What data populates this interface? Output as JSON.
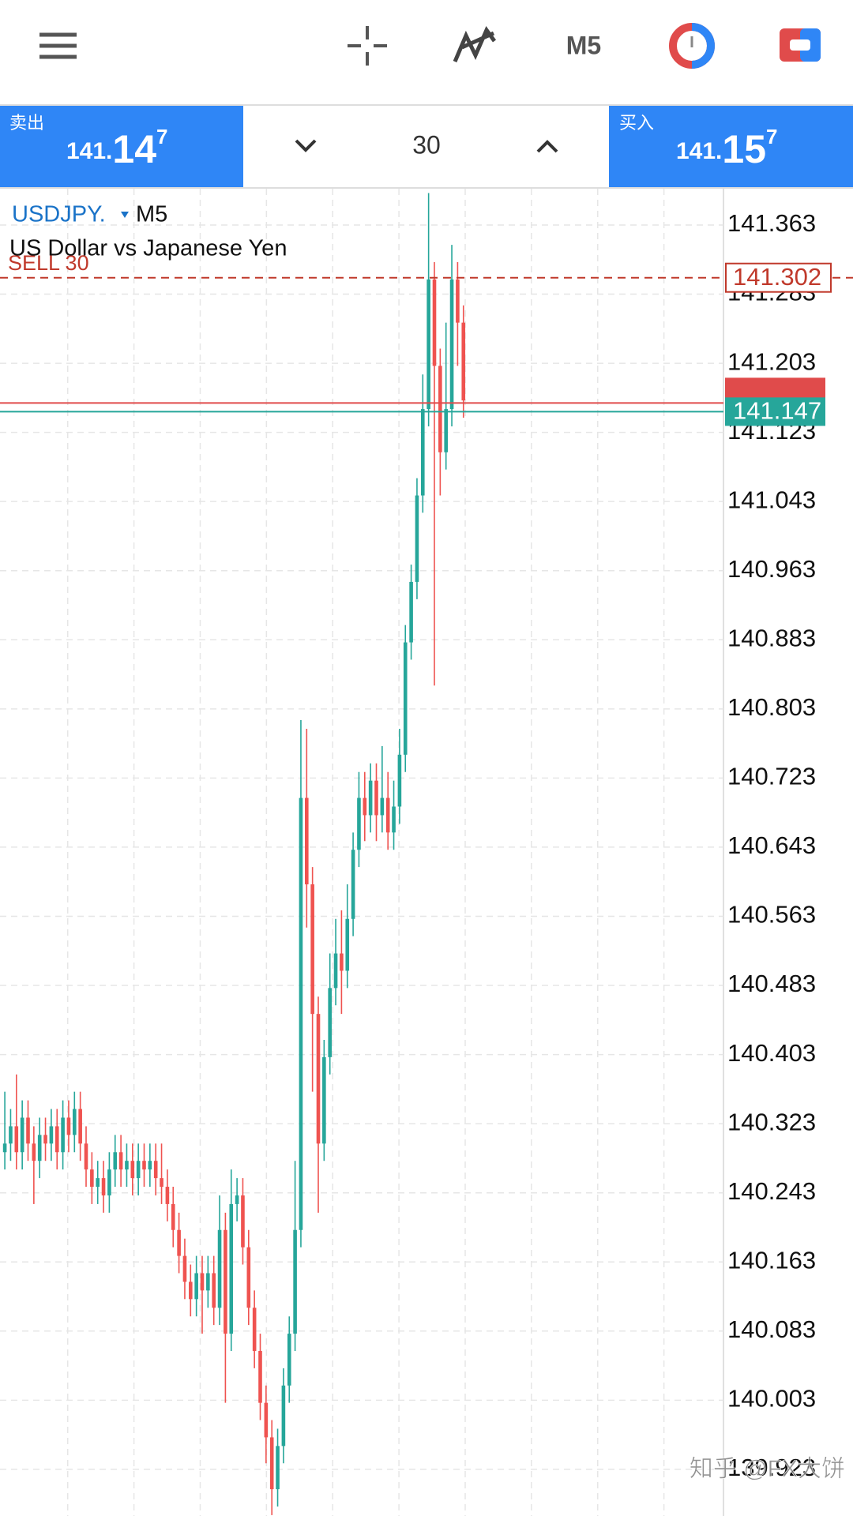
{
  "toolbar": {
    "timeframe": "M5"
  },
  "trade_panel": {
    "sell": {
      "label": "卖出",
      "price_prefix": "141.",
      "price_big": "14",
      "price_super": "7"
    },
    "volume": "30",
    "buy": {
      "label": "买入",
      "price_prefix": "141.",
      "price_big": "15",
      "price_super": "7"
    }
  },
  "chart_data": {
    "type": "candlestick",
    "symbol": "USDJPY.",
    "timeframe": "M5",
    "description": "US Dollar vs Japanese Yen",
    "up_color": "#26a69a",
    "down_color": "#ef5350",
    "grid": true,
    "ylim": [
      139.869,
      141.405
    ],
    "yticks": [
      141.363,
      141.283,
      141.203,
      141.123,
      141.043,
      140.963,
      140.883,
      140.803,
      140.723,
      140.643,
      140.563,
      140.483,
      140.403,
      140.323,
      140.243,
      140.163,
      140.083,
      140.003,
      139.923
    ],
    "open": [
      140.29,
      140.3,
      140.32,
      140.29,
      140.33,
      140.3,
      140.28,
      140.31,
      140.3,
      140.32,
      140.29,
      140.33,
      140.31,
      140.34,
      140.3,
      140.27,
      140.25,
      140.26,
      140.24,
      140.27,
      140.29,
      140.27,
      140.28,
      140.26,
      140.28,
      140.27,
      140.28,
      140.26,
      140.25,
      140.23,
      140.2,
      140.17,
      140.14,
      140.12,
      140.15,
      140.13,
      140.15,
      140.11,
      140.2,
      140.08,
      140.23,
      140.24,
      140.18,
      140.11,
      140.06,
      140,
      139.96,
      139.9,
      139.95,
      140.02,
      140.08,
      140.2,
      140.7,
      140.6,
      140.45,
      140.3,
      140.4,
      140.48,
      140.52,
      140.5,
      140.56,
      140.64,
      140.7,
      140.68,
      140.72,
      140.68,
      140.7,
      140.66,
      140.69,
      140.75,
      140.88,
      140.95,
      141.05,
      141.15,
      141.3,
      141.2,
      141.1,
      141.15,
      141.3,
      141.25
    ],
    "high": [
      140.36,
      140.34,
      140.38,
      140.35,
      140.35,
      140.32,
      140.33,
      140.33,
      140.34,
      140.34,
      140.35,
      140.35,
      140.36,
      140.36,
      140.32,
      140.29,
      140.28,
      140.28,
      140.29,
      140.31,
      140.31,
      140.3,
      140.3,
      140.3,
      140.3,
      140.3,
      140.3,
      140.3,
      140.27,
      140.25,
      140.22,
      140.19,
      140.16,
      140.17,
      140.17,
      140.17,
      140.17,
      140.24,
      140.22,
      140.27,
      140.26,
      140.26,
      140.2,
      140.13,
      140.08,
      140.02,
      139.98,
      139.97,
      140.04,
      140.1,
      140.28,
      140.79,
      140.78,
      140.62,
      140.47,
      140.42,
      140.52,
      140.56,
      140.57,
      140.6,
      140.66,
      140.73,
      140.73,
      140.74,
      140.74,
      140.76,
      140.73,
      140.72,
      140.78,
      140.9,
      140.97,
      141.07,
      141.19,
      141.4,
      141.32,
      141.22,
      141.25,
      141.34,
      141.32,
      141.27
    ],
    "low": [
      140.27,
      140.28,
      140.27,
      140.27,
      140.28,
      140.23,
      140.26,
      140.28,
      140.28,
      140.27,
      140.27,
      140.29,
      140.29,
      140.28,
      140.25,
      140.23,
      140.23,
      140.22,
      140.22,
      140.25,
      140.25,
      140.25,
      140.24,
      140.24,
      140.25,
      140.25,
      140.24,
      140.23,
      140.21,
      140.18,
      140.15,
      140.12,
      140.1,
      140.1,
      140.08,
      140.11,
      140.09,
      140.09,
      140,
      140.06,
      140.21,
      140.16,
      140.09,
      140.04,
      139.98,
      139.93,
      139.87,
      139.88,
      139.93,
      140,
      140.06,
      140.18,
      140.55,
      140.36,
      140.22,
      140.28,
      140.38,
      140.46,
      140.45,
      140.48,
      140.54,
      140.62,
      140.65,
      140.66,
      140.65,
      140.66,
      140.64,
      140.64,
      140.67,
      140.73,
      140.86,
      140.93,
      141.03,
      141.13,
      140.83,
      141.05,
      141.08,
      141.13,
      141.2,
      141.14
    ],
    "close": [
      140.3,
      140.32,
      140.29,
      140.33,
      140.3,
      140.28,
      140.31,
      140.3,
      140.32,
      140.29,
      140.33,
      140.31,
      140.34,
      140.3,
      140.27,
      140.25,
      140.26,
      140.24,
      140.27,
      140.29,
      140.27,
      140.28,
      140.26,
      140.28,
      140.27,
      140.28,
      140.26,
      140.25,
      140.23,
      140.2,
      140.17,
      140.14,
      140.12,
      140.15,
      140.13,
      140.15,
      140.11,
      140.2,
      140.08,
      140.23,
      140.24,
      140.18,
      140.11,
      140.06,
      140,
      139.96,
      139.9,
      139.95,
      140.02,
      140.08,
      140.2,
      140.7,
      140.6,
      140.45,
      140.3,
      140.4,
      140.48,
      140.52,
      140.5,
      140.56,
      140.64,
      140.7,
      140.68,
      140.72,
      140.68,
      140.7,
      140.66,
      140.69,
      140.75,
      140.88,
      140.95,
      141.05,
      141.15,
      141.3,
      141.2,
      141.1,
      141.15,
      141.3,
      141.25,
      141.16
    ],
    "price_lines": [
      {
        "label": "SELL 30",
        "value": 141.302,
        "color": "#c0392b",
        "dashed": true,
        "tag_style": "outline",
        "tag_text": true
      },
      {
        "value": 141.157,
        "color": "#e04b4b",
        "dashed": false,
        "tag_style": "filled",
        "tag_text": false
      },
      {
        "value": 141.147,
        "color": "#26a69a",
        "dashed": false,
        "tag_style": "filled",
        "tag_text": true
      }
    ],
    "watermark": "知乎 @FX大饼"
  }
}
